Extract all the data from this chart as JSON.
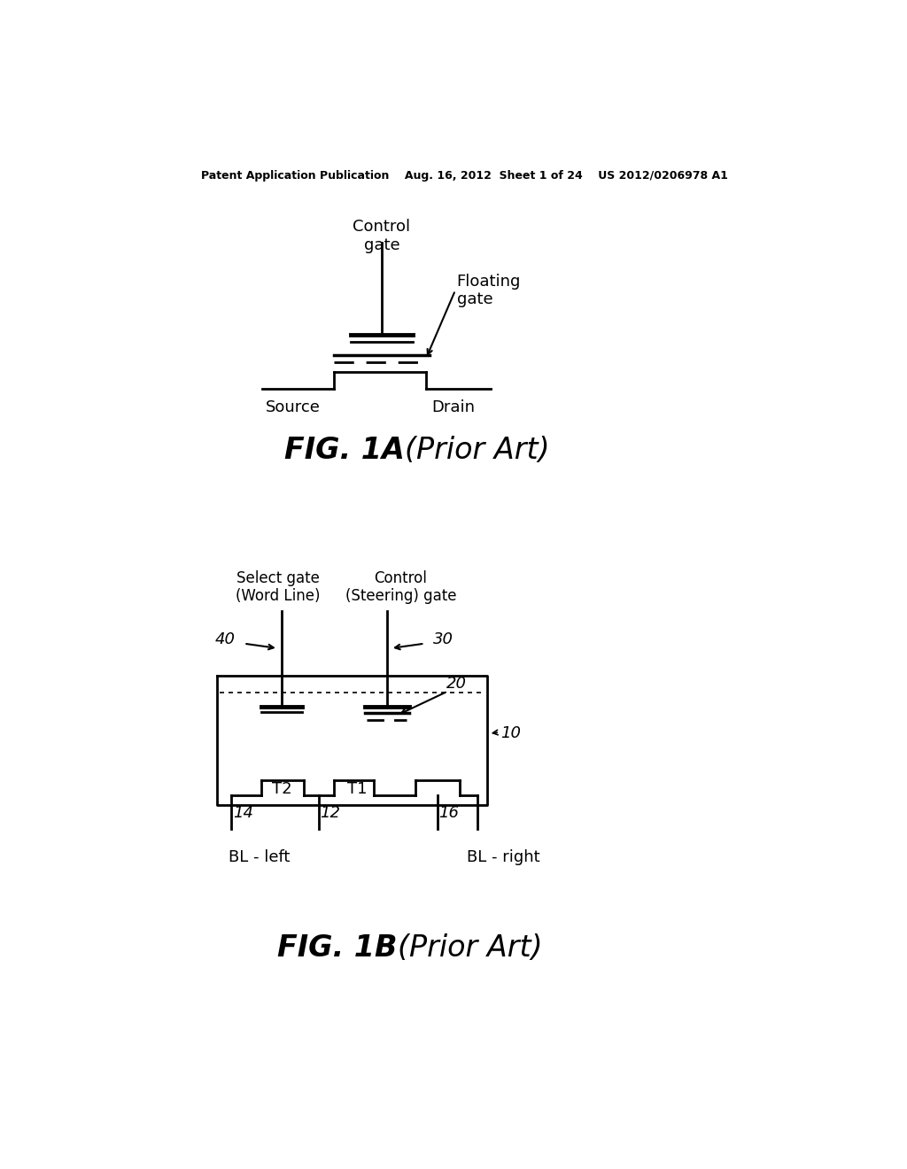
{
  "bg_color": "#ffffff",
  "header_text": "Patent Application Publication    Aug. 16, 2012  Sheet 1 of 24    US 2012/0206978 A1",
  "fig1a_label": "FIG. 1A",
  "fig1a_prior_art": "(Prior Art)",
  "fig1b_label": "FIG. 1B",
  "fig1b_prior_art": "(Prior Art)"
}
